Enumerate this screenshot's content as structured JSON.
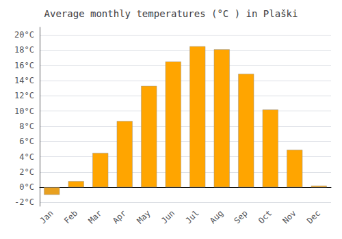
{
  "chart_data": {
    "type": "bar",
    "title": "Average monthly temperatures (°C ) in Plaški",
    "categories": [
      "Jan",
      "Feb",
      "Mar",
      "Apr",
      "May",
      "Jun",
      "Jul",
      "Aug",
      "Sep",
      "Oct",
      "Nov",
      "Dec"
    ],
    "values": [
      -1.0,
      0.8,
      4.5,
      8.7,
      13.3,
      16.5,
      18.5,
      18.1,
      14.9,
      10.2,
      4.9,
      0.2
    ],
    "colors": [
      "#E8A020",
      "#FFA500",
      "#FFA500",
      "#FFA500",
      "#FFA500",
      "#FFA500",
      "#FFA500",
      "#FFA500",
      "#FFA500",
      "#FFA500",
      "#FFA500",
      "#FFA500"
    ],
    "ylim": [
      -2.5,
      21.0
    ],
    "yticks": [
      {
        "value": -2,
        "label": "-2°C"
      },
      {
        "value": 0,
        "label": "0°C"
      },
      {
        "value": 2,
        "label": "2°C"
      },
      {
        "value": 4,
        "label": "4°C"
      },
      {
        "value": 6,
        "label": "6°C"
      },
      {
        "value": 8,
        "label": "8°C"
      },
      {
        "value": 10,
        "label": "10°C"
      },
      {
        "value": 12,
        "label": "12°C"
      },
      {
        "value": 14,
        "label": "14°C"
      },
      {
        "value": 16,
        "label": "16°C"
      },
      {
        "value": 18,
        "label": "18°C"
      },
      {
        "value": 20,
        "label": "20°C"
      }
    ],
    "grid": true
  }
}
